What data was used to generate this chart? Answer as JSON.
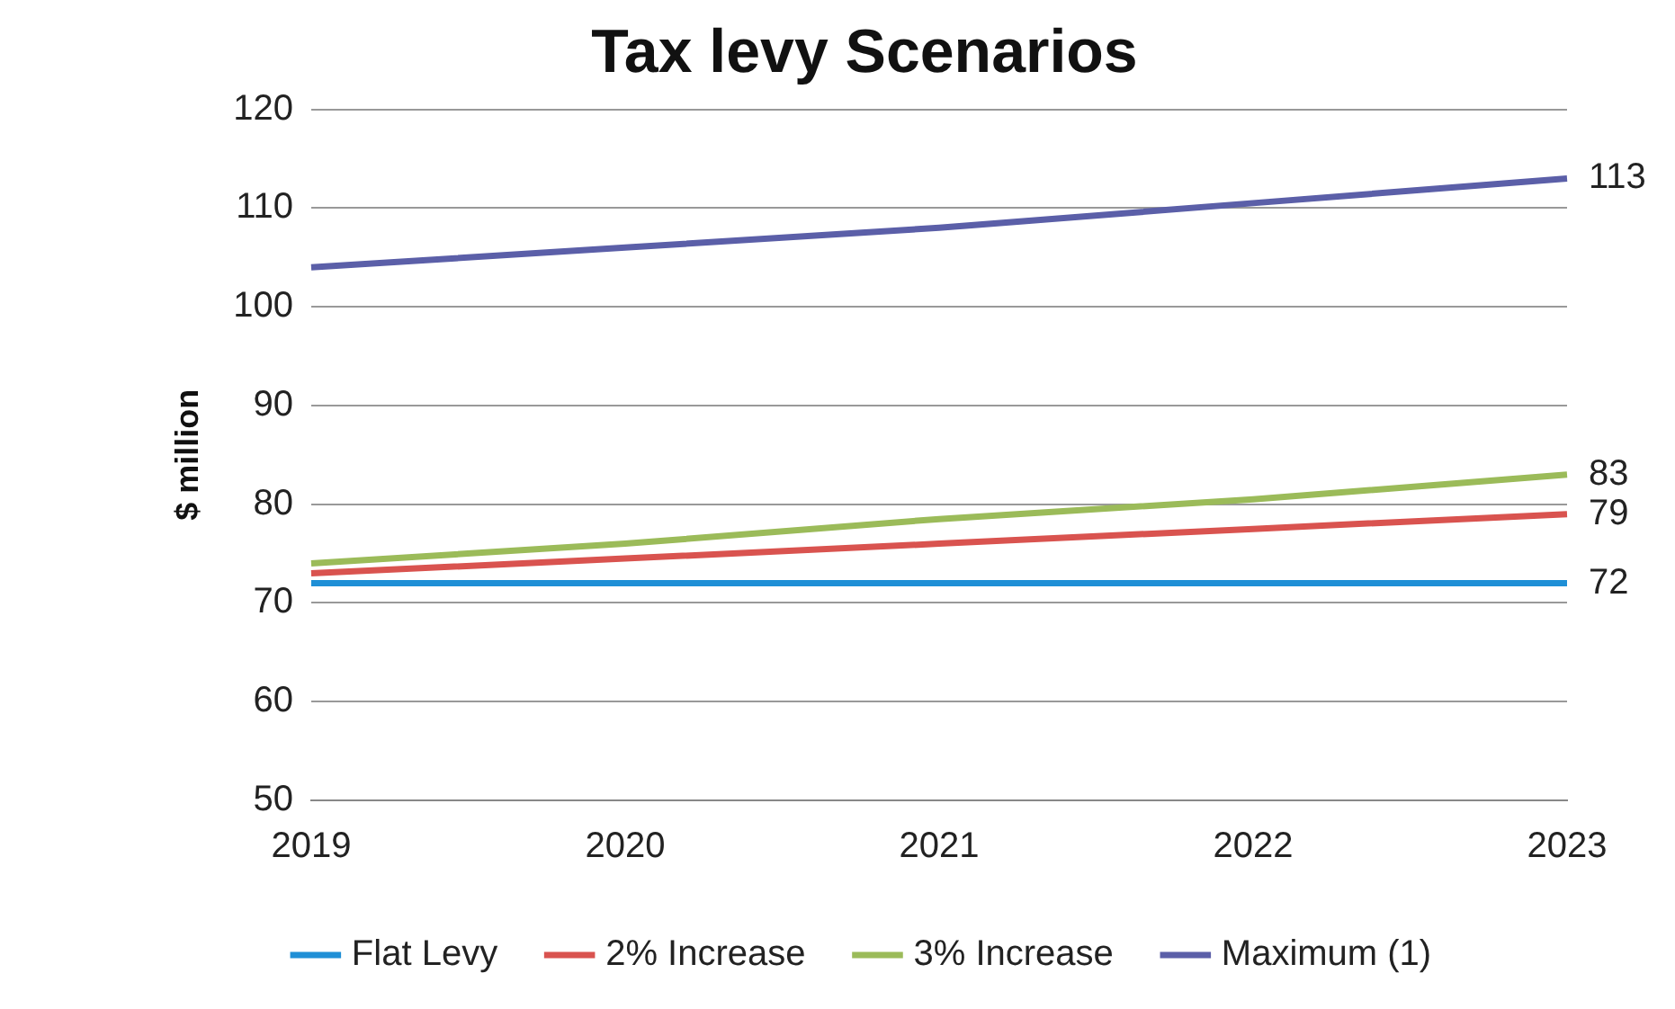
{
  "chart_data": {
    "type": "line",
    "title": "Tax levy Scenarios",
    "ylabel": "$ million",
    "categories": [
      "2019",
      "2020",
      "2021",
      "2022",
      "2023"
    ],
    "series": [
      {
        "name": "Flat Levy",
        "color": "#1f8fd6",
        "values": [
          72,
          72,
          72,
          72,
          72
        ],
        "value_labels": [
          null,
          null,
          null,
          null,
          "72"
        ]
      },
      {
        "name": "2% Increase",
        "color": "#d9534f",
        "values": [
          73,
          74.5,
          76,
          77.5,
          79
        ],
        "value_labels": [
          null,
          null,
          null,
          null,
          "79"
        ]
      },
      {
        "name": "3% Increase",
        "color": "#9bbb59",
        "values": [
          74,
          76,
          78.5,
          80.5,
          83
        ],
        "value_labels": [
          null,
          null,
          null,
          null,
          "83"
        ]
      },
      {
        "name": "Maximum (1)",
        "color": "#5b5fa8",
        "values": [
          104,
          106,
          108,
          110.5,
          113
        ],
        "value_labels": [
          null,
          null,
          null,
          null,
          "113"
        ]
      }
    ],
    "ylim": [
      50,
      120
    ],
    "yticks": [
      50,
      60,
      70,
      80,
      90,
      100,
      110,
      120
    ],
    "grid": "y",
    "legend": "bottom",
    "marker": "none",
    "line_style": "solid"
  }
}
